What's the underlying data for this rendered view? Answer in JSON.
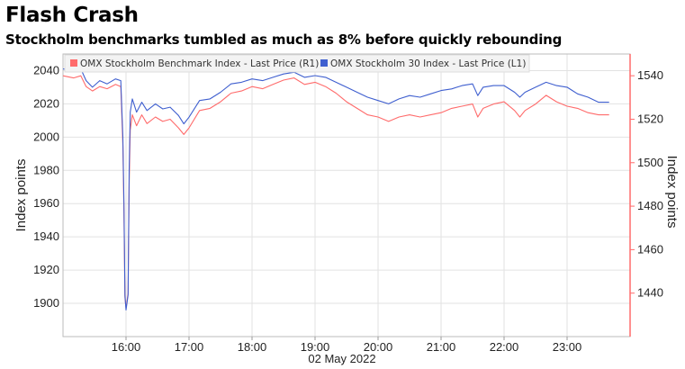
{
  "chart_data": {
    "type": "line",
    "title": "Flash Crash",
    "subtitle": "Stockholm benchmarks tumbled as much as 8% before quickly rebounding",
    "xlabel": "02 May 2022",
    "ylabel_left": "Index points",
    "ylabel_right": "Index points",
    "x_ticks": [
      "16:00",
      "17:00",
      "18:00",
      "19:00",
      "20:00",
      "21:00",
      "22:00",
      "23:00"
    ],
    "x_range": [
      "15:00",
      "24:00"
    ],
    "y_left_range": [
      1880,
      2050
    ],
    "y_left_ticks": [
      1900,
      1920,
      1940,
      1960,
      1980,
      2000,
      2020,
      2040
    ],
    "y_right_range": [
      1420,
      1550
    ],
    "y_right_ticks": [
      1440,
      1460,
      1480,
      1500,
      1520,
      1540
    ],
    "grid": true,
    "legend_position": "top",
    "series": [
      {
        "name": "OMX Stockholm Benchmark Index - Last Price (R1)",
        "axis": "right",
        "color": "#ff6b6b",
        "points": [
          [
            "15:00",
            1540
          ],
          [
            "15:10",
            1539
          ],
          [
            "15:17",
            1540
          ],
          [
            "15:22",
            1535
          ],
          [
            "15:28",
            1533
          ],
          [
            "15:35",
            1535
          ],
          [
            "15:42",
            1534
          ],
          [
            "15:50",
            1536
          ],
          [
            "15:55",
            1535
          ],
          [
            "15:57",
            1508
          ],
          [
            "15:58",
            1477
          ],
          [
            "15:59",
            1438
          ],
          [
            "16:00",
            1433
          ],
          [
            "16:02",
            1440
          ],
          [
            "16:03",
            1490
          ],
          [
            "16:04",
            1515
          ],
          [
            "16:06",
            1522
          ],
          [
            "16:10",
            1517
          ],
          [
            "16:15",
            1522
          ],
          [
            "16:20",
            1518
          ],
          [
            "16:28",
            1521
          ],
          [
            "16:35",
            1519
          ],
          [
            "16:42",
            1520
          ],
          [
            "16:50",
            1516
          ],
          [
            "16:55",
            1513
          ],
          [
            "17:00",
            1516
          ],
          [
            "17:10",
            1524
          ],
          [
            "17:20",
            1525
          ],
          [
            "17:30",
            1528
          ],
          [
            "17:40",
            1532
          ],
          [
            "17:50",
            1533
          ],
          [
            "18:00",
            1535
          ],
          [
            "18:10",
            1534
          ],
          [
            "18:20",
            1536
          ],
          [
            "18:30",
            1538
          ],
          [
            "18:40",
            1539
          ],
          [
            "18:50",
            1536
          ],
          [
            "19:00",
            1537
          ],
          [
            "19:10",
            1535
          ],
          [
            "19:20",
            1532
          ],
          [
            "19:30",
            1528
          ],
          [
            "19:40",
            1525
          ],
          [
            "19:50",
            1522
          ],
          [
            "20:00",
            1521
          ],
          [
            "20:10",
            1519
          ],
          [
            "20:20",
            1521
          ],
          [
            "20:30",
            1522
          ],
          [
            "20:40",
            1521
          ],
          [
            "20:50",
            1522
          ],
          [
            "21:00",
            1523
          ],
          [
            "21:10",
            1525
          ],
          [
            "21:20",
            1526
          ],
          [
            "21:30",
            1527
          ],
          [
            "21:35",
            1521
          ],
          [
            "21:40",
            1525
          ],
          [
            "21:50",
            1527
          ],
          [
            "22:00",
            1528
          ],
          [
            "22:10",
            1524
          ],
          [
            "22:15",
            1521
          ],
          [
            "22:20",
            1524
          ],
          [
            "22:30",
            1527
          ],
          [
            "22:40",
            1531
          ],
          [
            "22:50",
            1528
          ],
          [
            "23:00",
            1526
          ],
          [
            "23:10",
            1525
          ],
          [
            "23:20",
            1523
          ],
          [
            "23:30",
            1522
          ],
          [
            "23:40",
            1522
          ]
        ]
      },
      {
        "name": "OMX Stockholm 30 Index - Last Price (L1)",
        "axis": "left",
        "color": "#3f5fcf",
        "points": [
          [
            "15:00",
            2041
          ],
          [
            "15:10",
            2040
          ],
          [
            "15:17",
            2041
          ],
          [
            "15:22",
            2034
          ],
          [
            "15:28",
            2030
          ],
          [
            "15:35",
            2034
          ],
          [
            "15:42",
            2032
          ],
          [
            "15:50",
            2035
          ],
          [
            "15:55",
            2034
          ],
          [
            "15:57",
            2000
          ],
          [
            "15:58",
            1960
          ],
          [
            "15:59",
            1905
          ],
          [
            "16:00",
            1896
          ],
          [
            "16:02",
            1905
          ],
          [
            "16:03",
            1980
          ],
          [
            "16:04",
            2015
          ],
          [
            "16:06",
            2023
          ],
          [
            "16:10",
            2015
          ],
          [
            "16:15",
            2021
          ],
          [
            "16:20",
            2016
          ],
          [
            "16:28",
            2020
          ],
          [
            "16:35",
            2017
          ],
          [
            "16:42",
            2018
          ],
          [
            "16:50",
            2013
          ],
          [
            "16:55",
            2008
          ],
          [
            "17:00",
            2012
          ],
          [
            "17:10",
            2022
          ],
          [
            "17:20",
            2023
          ],
          [
            "17:30",
            2027
          ],
          [
            "17:40",
            2032
          ],
          [
            "17:50",
            2033
          ],
          [
            "18:00",
            2035
          ],
          [
            "18:10",
            2034
          ],
          [
            "18:20",
            2036
          ],
          [
            "18:30",
            2038
          ],
          [
            "18:40",
            2039
          ],
          [
            "18:50",
            2036
          ],
          [
            "19:00",
            2037
          ],
          [
            "19:10",
            2036
          ],
          [
            "19:20",
            2033
          ],
          [
            "19:30",
            2030
          ],
          [
            "19:40",
            2027
          ],
          [
            "19:50",
            2024
          ],
          [
            "20:00",
            2022
          ],
          [
            "20:10",
            2020
          ],
          [
            "20:20",
            2023
          ],
          [
            "20:30",
            2025
          ],
          [
            "20:40",
            2024
          ],
          [
            "20:50",
            2026
          ],
          [
            "21:00",
            2028
          ],
          [
            "21:10",
            2029
          ],
          [
            "21:20",
            2031
          ],
          [
            "21:30",
            2032
          ],
          [
            "21:35",
            2025
          ],
          [
            "21:40",
            2030
          ],
          [
            "21:50",
            2031
          ],
          [
            "22:00",
            2031
          ],
          [
            "22:10",
            2027
          ],
          [
            "22:15",
            2024
          ],
          [
            "22:20",
            2027
          ],
          [
            "22:30",
            2030
          ],
          [
            "22:40",
            2033
          ],
          [
            "22:50",
            2031
          ],
          [
            "23:00",
            2030
          ],
          [
            "23:10",
            2026
          ],
          [
            "23:20",
            2024
          ],
          [
            "23:30",
            2021
          ],
          [
            "23:40",
            2021
          ]
        ]
      }
    ]
  }
}
